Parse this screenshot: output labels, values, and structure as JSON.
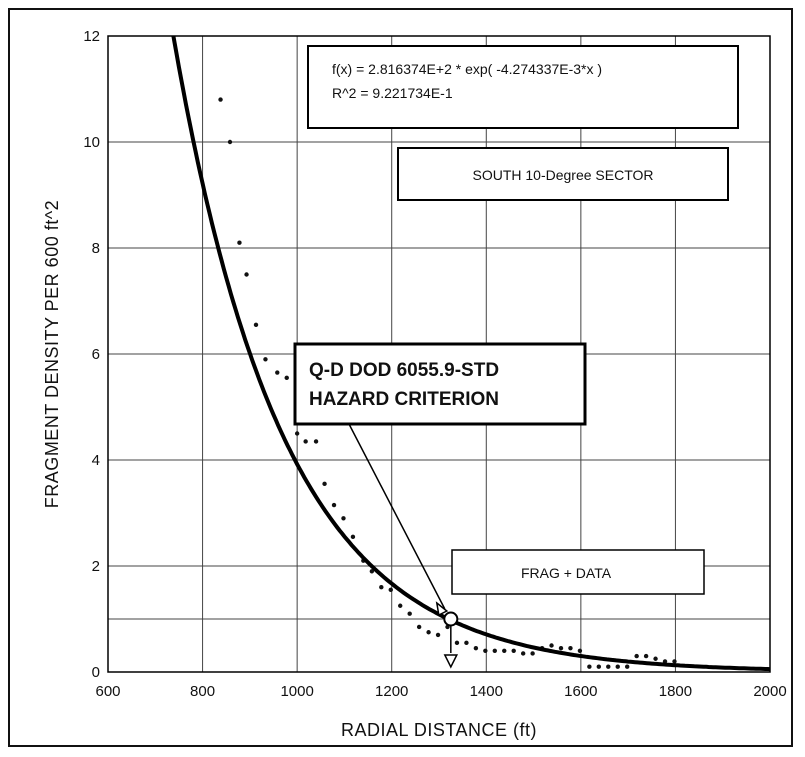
{
  "chart_data": {
    "type": "scatter",
    "xlabel": "RADIAL DISTANCE (ft)",
    "ylabel": "FRAGMENT DENSITY  PER 600 ft^2",
    "xlim": [
      600,
      2000
    ],
    "ylim": [
      0,
      12
    ],
    "x_ticks": [
      "600",
      "800",
      "1000",
      "1200",
      "1400",
      "1600",
      "1800",
      "2000"
    ],
    "y_ticks": [
      "0",
      "2",
      "4",
      "6",
      "8",
      "10",
      "12"
    ],
    "grid": true,
    "fit": {
      "equation": "f(x) = 2.816374E+2 * exp( -4.274337E-3*x )",
      "r_squared": "R^2 = 9.221734E-1",
      "a": 281.6374,
      "b": -0.004274337
    },
    "sector_label": "SOUTH 10-Degree SECTOR",
    "criterion_label_line1": "Q-D DOD 6055.9-STD",
    "criterion_label_line2": "HAZARD CRITERION",
    "criterion_point": {
      "x": 1325,
      "y": 1.0
    },
    "legend_entry": "FRAG + DATA",
    "series": [
      {
        "points": [
          [
            838,
            10.8
          ],
          [
            858,
            10.0
          ],
          [
            878,
            8.1
          ],
          [
            893,
            7.5
          ],
          [
            913,
            6.55
          ],
          [
            933,
            5.9
          ],
          [
            958,
            5.65
          ],
          [
            978,
            5.55
          ],
          [
            1000,
            4.5
          ],
          [
            1018,
            4.35
          ],
          [
            1040,
            4.35
          ],
          [
            1058,
            3.55
          ],
          [
            1078,
            3.15
          ],
          [
            1098,
            2.9
          ],
          [
            1118,
            2.55
          ],
          [
            1140,
            2.1
          ],
          [
            1158,
            1.9
          ],
          [
            1178,
            1.6
          ],
          [
            1198,
            1.55
          ],
          [
            1218,
            1.25
          ],
          [
            1238,
            1.1
          ],
          [
            1258,
            0.85
          ],
          [
            1278,
            0.75
          ],
          [
            1298,
            0.7
          ],
          [
            1318,
            0.85
          ],
          [
            1338,
            0.55
          ],
          [
            1358,
            0.55
          ],
          [
            1378,
            0.45
          ],
          [
            1398,
            0.4
          ],
          [
            1418,
            0.4
          ],
          [
            1438,
            0.4
          ],
          [
            1458,
            0.4
          ],
          [
            1478,
            0.35
          ],
          [
            1498,
            0.35
          ],
          [
            1518,
            0.45
          ],
          [
            1538,
            0.5
          ],
          [
            1558,
            0.45
          ],
          [
            1578,
            0.45
          ],
          [
            1598,
            0.4
          ],
          [
            1618,
            0.1
          ],
          [
            1638,
            0.1
          ],
          [
            1658,
            0.1
          ],
          [
            1678,
            0.1
          ],
          [
            1698,
            0.1
          ],
          [
            1718,
            0.3
          ],
          [
            1738,
            0.3
          ],
          [
            1758,
            0.25
          ],
          [
            1778,
            0.2
          ],
          [
            1798,
            0.2
          ]
        ]
      }
    ]
  }
}
